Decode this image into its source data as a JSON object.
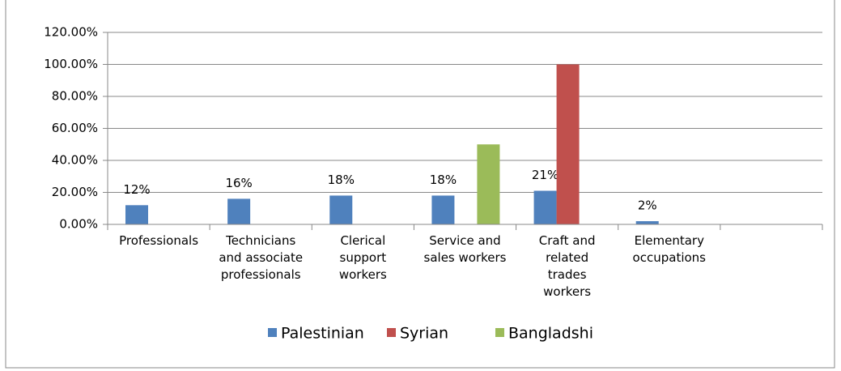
{
  "chart_data": {
    "type": "bar",
    "categories": [
      "Professionals",
      "Technicians and associate professionals",
      "Clerical support workers",
      "Service and sales workers",
      "Craft and related trades workers",
      "Elementary occupations",
      null
    ],
    "series": [
      {
        "name": "Palestinian",
        "color": "#4f81bd",
        "values": [
          12,
          16,
          18,
          18,
          21,
          2,
          null
        ],
        "value_labels": [
          "12%",
          "16%",
          "18%",
          "18%",
          "21%",
          "2%",
          null
        ]
      },
      {
        "name": "Syrian",
        "color": "#c0504d",
        "values": [
          null,
          null,
          null,
          null,
          100,
          null,
          null
        ]
      },
      {
        "name": "Bangladshi",
        "color": "#9bbb59",
        "values": [
          null,
          null,
          null,
          50,
          null,
          null,
          null
        ]
      }
    ],
    "ylim": [
      0,
      120
    ],
    "yticks": [
      {
        "value": 0,
        "label": "0.00%"
      },
      {
        "value": 20,
        "label": "20.00%"
      },
      {
        "value": 40,
        "label": "40.00%"
      },
      {
        "value": 60,
        "label": "60.00%"
      },
      {
        "value": 80,
        "label": "80.00%"
      },
      {
        "value": 100,
        "label": "100.00%"
      },
      {
        "value": 120,
        "label": "120.00%"
      }
    ],
    "grid": true,
    "legend": "bottom"
  }
}
